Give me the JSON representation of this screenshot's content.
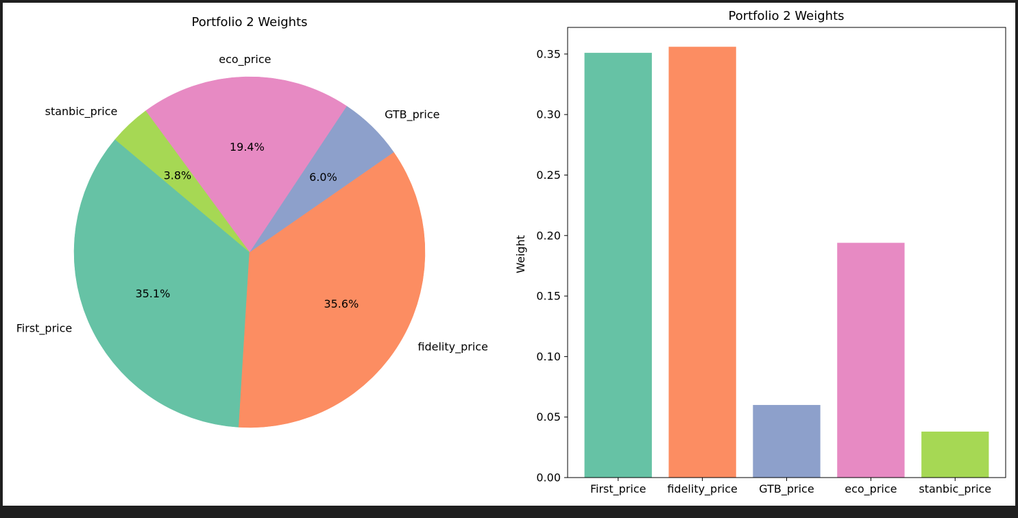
{
  "chart_data": [
    {
      "type": "pie",
      "title": "Portfolio 2 Weights",
      "labels": [
        "First_price",
        "fidelity_price",
        "GTB_price",
        "eco_price",
        "stanbic_price"
      ],
      "values": [
        0.351,
        0.356,
        0.06,
        0.194,
        0.038
      ],
      "percent_labels": [
        "35.1%",
        "35.6%",
        "6.0%",
        "19.4%",
        "3.8%"
      ],
      "colors": [
        "#66c2a5",
        "#fc8d62",
        "#8da0cb",
        "#e78ac3",
        "#a6d854"
      ],
      "start_angle_deg": 140,
      "direction": "counterclockwise"
    },
    {
      "type": "bar",
      "title": "Portfolio 2 Weights",
      "categories": [
        "First_price",
        "fidelity_price",
        "GTB_price",
        "eco_price",
        "stanbic_price"
      ],
      "values": [
        0.351,
        0.356,
        0.06,
        0.194,
        0.038
      ],
      "colors": [
        "#66c2a5",
        "#fc8d62",
        "#8da0cb",
        "#e78ac3",
        "#a6d854"
      ],
      "xlabel": "",
      "ylabel": "Weight",
      "ylim": [
        0,
        0.372
      ],
      "yticks": [
        0.0,
        0.05,
        0.1,
        0.15,
        0.2,
        0.25,
        0.3,
        0.35
      ],
      "ytick_labels": [
        "0.00",
        "0.05",
        "0.10",
        "0.15",
        "0.20",
        "0.25",
        "0.30",
        "0.35"
      ],
      "grid": false
    }
  ]
}
